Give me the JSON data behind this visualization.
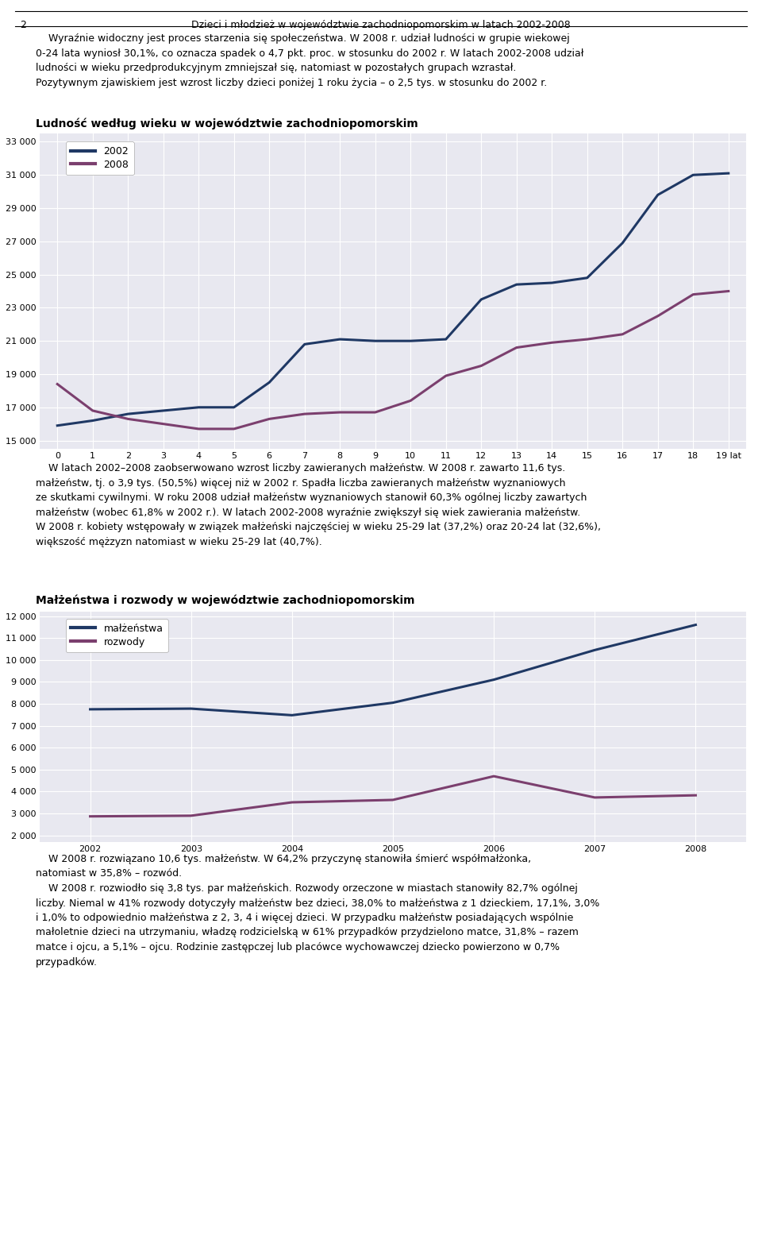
{
  "page_title": "Dzieci i młodzież w województwie zachodniopomorskim w latach 2002-2008",
  "page_number": "2",
  "intro_text_lines": [
    "    Wyraźnie widoczny jest proces starzenia się społeczeństwa. W 2008 r. udział ludności w grupie wiekowej",
    "0-24 lata wyniosł 30,1%, co oznacza spadek o 4,7 pkt. proc. w stosunku do 2002 r. W latach 2002-2008 udział",
    "ludności w wieku przedprodukcyjnym zmniejszał się, natomiast w pozostałych grupach wzrastał.",
    "Pozytywnym zjawiskiem jest wzrost liczby dzieci poniżej 1 roku życia – o 2,5 tys. w stosunku do 2002 r."
  ],
  "chart1_title": "Ludność według wieku w województwie zachodniopomorskim",
  "chart1_yticks": [
    15000,
    17000,
    19000,
    21000,
    23000,
    25000,
    27000,
    29000,
    31000,
    33000
  ],
  "chart1_ylim": [
    14500,
    33500
  ],
  "chart1_xlim": [
    -0.5,
    19.5
  ],
  "chart1_2002": [
    15900,
    16200,
    16600,
    16800,
    17000,
    17000,
    18500,
    20800,
    21100,
    21000,
    21000,
    21100,
    23500,
    24400,
    24500,
    24800,
    26900,
    29800,
    31000,
    31100
  ],
  "chart1_2008": [
    18400,
    16800,
    16300,
    16000,
    15700,
    15700,
    16300,
    16600,
    16700,
    16700,
    17400,
    18900,
    19500,
    20600,
    20900,
    21100,
    21400,
    22500,
    23800,
    24000
  ],
  "chart1_color_2002": "#1F3864",
  "chart1_color_2008": "#7B3F6E",
  "mid_text_lines": [
    "    W latach 2002–2008 zaobserwowano wzrost liczby zawieranych małżeństw. W 2008 r. zawarto 11,6 tys.",
    "małżeństw, tj. o 3,9 tys. (50,5%) więcej niż w 2002 r. Spadła liczba zawieranych małżeństw wyznaniowych",
    "ze skutkami cywilnymi. W roku 2008 udział małżeństw wyznaniowych stanowił 60,3% ogólnej liczby zawartych",
    "małżeństw (wobec 61,8% w 2002 r.). W latach 2002-2008 wyraźnie zwiększył się wiek zawierania małżeństw.",
    "W 2008 r. kobiety wstępowały w związek małżeński najczęściej w wieku 25-29 lat (37,2%) oraz 20-24 lat (32,6%),",
    "większość mężzyzn natomiast w wieku 25-29 lat (40,7%)."
  ],
  "chart2_title": "Małżeństwa i rozwody w województwie zachodniopomorskim",
  "chart2_years": [
    2002,
    2003,
    2004,
    2005,
    2006,
    2007,
    2008
  ],
  "chart2_malzenstwa": [
    7750,
    7780,
    7480,
    8050,
    9100,
    10450,
    11600
  ],
  "chart2_rozwody": [
    2870,
    2900,
    3510,
    3620,
    4700,
    3730,
    3830
  ],
  "chart2_yticks": [
    2000,
    3000,
    4000,
    5000,
    6000,
    7000,
    8000,
    9000,
    10000,
    11000,
    12000
  ],
  "chart2_ylim": [
    1700,
    12200
  ],
  "chart2_color_malz": "#1F3864",
  "chart2_color_rozw": "#7B3F6E",
  "bottom_text_lines": [
    "    W 2008 r. rozwiązano 10,6 tys. małżeństw. W 64,2% przyczynę stanowiła śmierć współmałżonka,",
    "natomiast w 35,8% – rozwód.",
    "    W 2008 r. rozwiodło się 3,8 tys. par małżeńskich. Rozwody orzeczone w miastach stanowiły 82,7% ogólnej",
    "liczby. Niemal w 41% rozwody dotyczyły małżeństw bez dzieci, 38,0% to małżeństwa z 1 dzieckiem, 17,1%, 3,0%",
    "i 1,0% to odpowiednio małżeństwa z 2, 3, 4 i więcej dzieci. W przypadku małżeństw posiadających wspólnie",
    "małoletnie dzieci na utrzymaniu, władzę rodzicielską w 61% przypadków przydzielono matce, 31,8% – razem",
    "matce i ojcu, a 5,1% – ojcu. Rodzinie zastępczej lub placówce wychowawczej dziecko powierzono w 0,7%",
    "przypadków."
  ]
}
